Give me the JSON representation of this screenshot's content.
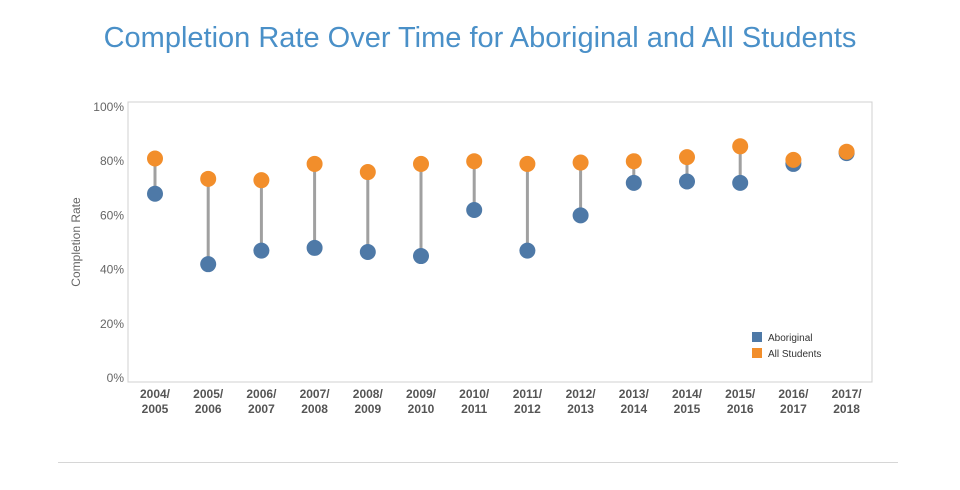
{
  "title": "Completion Rate Over Time for Aboriginal and All Students",
  "chart_data": {
    "type": "scatter",
    "subtype": "dumbbell",
    "categories": [
      [
        "2004/",
        "2005"
      ],
      [
        "2005/",
        "2006"
      ],
      [
        "2006/",
        "2007"
      ],
      [
        "2007/",
        "2008"
      ],
      [
        "2008/",
        "2009"
      ],
      [
        "2009/",
        "2010"
      ],
      [
        "2010/",
        "2011"
      ],
      [
        "2011/",
        "2012"
      ],
      [
        "2012/",
        "2013"
      ],
      [
        "2013/",
        "2014"
      ],
      [
        "2014/",
        "2015"
      ],
      [
        "2015/",
        "2016"
      ],
      [
        "2016/",
        "2017"
      ],
      [
        "2017/",
        "2018"
      ]
    ],
    "series": [
      {
        "name": "Aboriginal",
        "color": "#4e79a7",
        "values": [
          68,
          42,
          47,
          48,
          46.5,
          45,
          62,
          47,
          60,
          72,
          72.5,
          72,
          79,
          83
        ]
      },
      {
        "name": "All Students",
        "color": "#f28e2b",
        "values": [
          81,
          73.5,
          73,
          79,
          76,
          79,
          80,
          79,
          79.5,
          80,
          81.5,
          85.5,
          80.5,
          83.5
        ]
      }
    ],
    "ylabel": "Completion Rate",
    "xlabel": "",
    "ylim": [
      0,
      100
    ],
    "yticks": [
      "0%",
      "20%",
      "40%",
      "60%",
      "80%",
      "100%"
    ],
    "ytick_values": [
      0,
      20,
      40,
      60,
      80,
      100
    ],
    "connector_color": "#a0a0a0",
    "grid": false,
    "legend_position": "bottom-right"
  }
}
